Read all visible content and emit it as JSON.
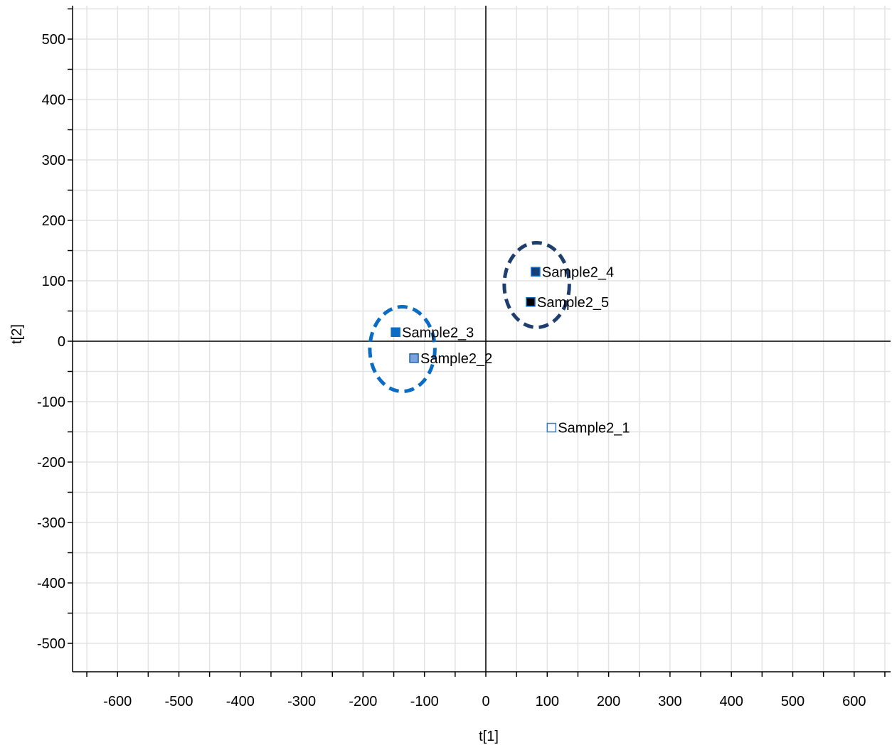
{
  "chart_data": {
    "type": "scatter",
    "xlabel": "t[1]",
    "ylabel": "t[2]",
    "xlim": [
      -680,
      665
    ],
    "ylim": [
      -545,
      550
    ],
    "x_ticks": [
      -600,
      -500,
      -400,
      -300,
      -200,
      -100,
      0,
      100,
      200,
      300,
      400,
      500,
      600
    ],
    "y_ticks": [
      500,
      400,
      300,
      200,
      100,
      0,
      -100,
      -200,
      -300,
      -400,
      -500
    ],
    "grid": true,
    "points": [
      {
        "label": "Sample2_1",
        "x": 107,
        "y": -143,
        "fill": "#ffffff",
        "stroke": "#2f7fd1"
      },
      {
        "label": "Sample2_2",
        "x": -117,
        "y": -28,
        "fill": "#7aa5dc",
        "stroke": "#1f5fa8"
      },
      {
        "label": "Sample2_3",
        "x": -147,
        "y": 15,
        "fill": "#0a6cc4",
        "stroke": "#0a6cc4"
      },
      {
        "label": "Sample2_4",
        "x": 81,
        "y": 115,
        "fill": "#173f73",
        "stroke": "#0a6cc4"
      },
      {
        "label": "Sample2_5",
        "x": 73,
        "y": 65,
        "fill": "#000000",
        "stroke": "#0a6cc4"
      }
    ],
    "groups": [
      {
        "cx": -136,
        "cy": -13,
        "rx": 53,
        "ry": 70,
        "color": "#0a6cc4"
      },
      {
        "cx": 83,
        "cy": 93,
        "rx": 53,
        "ry": 70,
        "color": "#1e3f6e"
      }
    ]
  }
}
